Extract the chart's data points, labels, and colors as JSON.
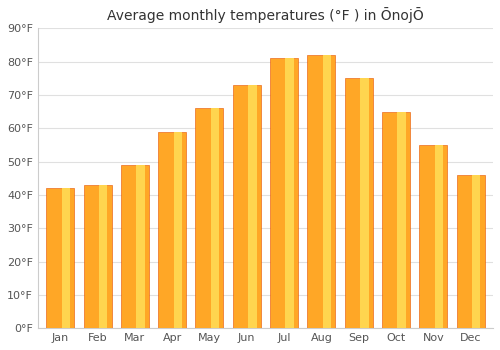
{
  "title": "Average monthly temperatures (°F ) in ŌnojŌ",
  "months": [
    "Jan",
    "Feb",
    "Mar",
    "Apr",
    "May",
    "Jun",
    "Jul",
    "Aug",
    "Sep",
    "Oct",
    "Nov",
    "Dec"
  ],
  "values": [
    42,
    43,
    49,
    59,
    66,
    73,
    81,
    82,
    75,
    65,
    55,
    46
  ],
  "ylim": [
    0,
    90
  ],
  "yticks": [
    0,
    10,
    20,
    30,
    40,
    50,
    60,
    70,
    80,
    90
  ],
  "ytick_labels": [
    "0°F",
    "10°F",
    "20°F",
    "30°F",
    "40°F",
    "50°F",
    "60°F",
    "70°F",
    "80°F",
    "90°F"
  ],
  "background_color": "#ffffff",
  "grid_color": "#e0e0e0",
  "bar_color_main": "#FFA726",
  "bar_color_light": "#FFD54F",
  "bar_edge_color": "#E65100",
  "title_fontsize": 10,
  "tick_fontsize": 8,
  "bar_width": 0.75
}
